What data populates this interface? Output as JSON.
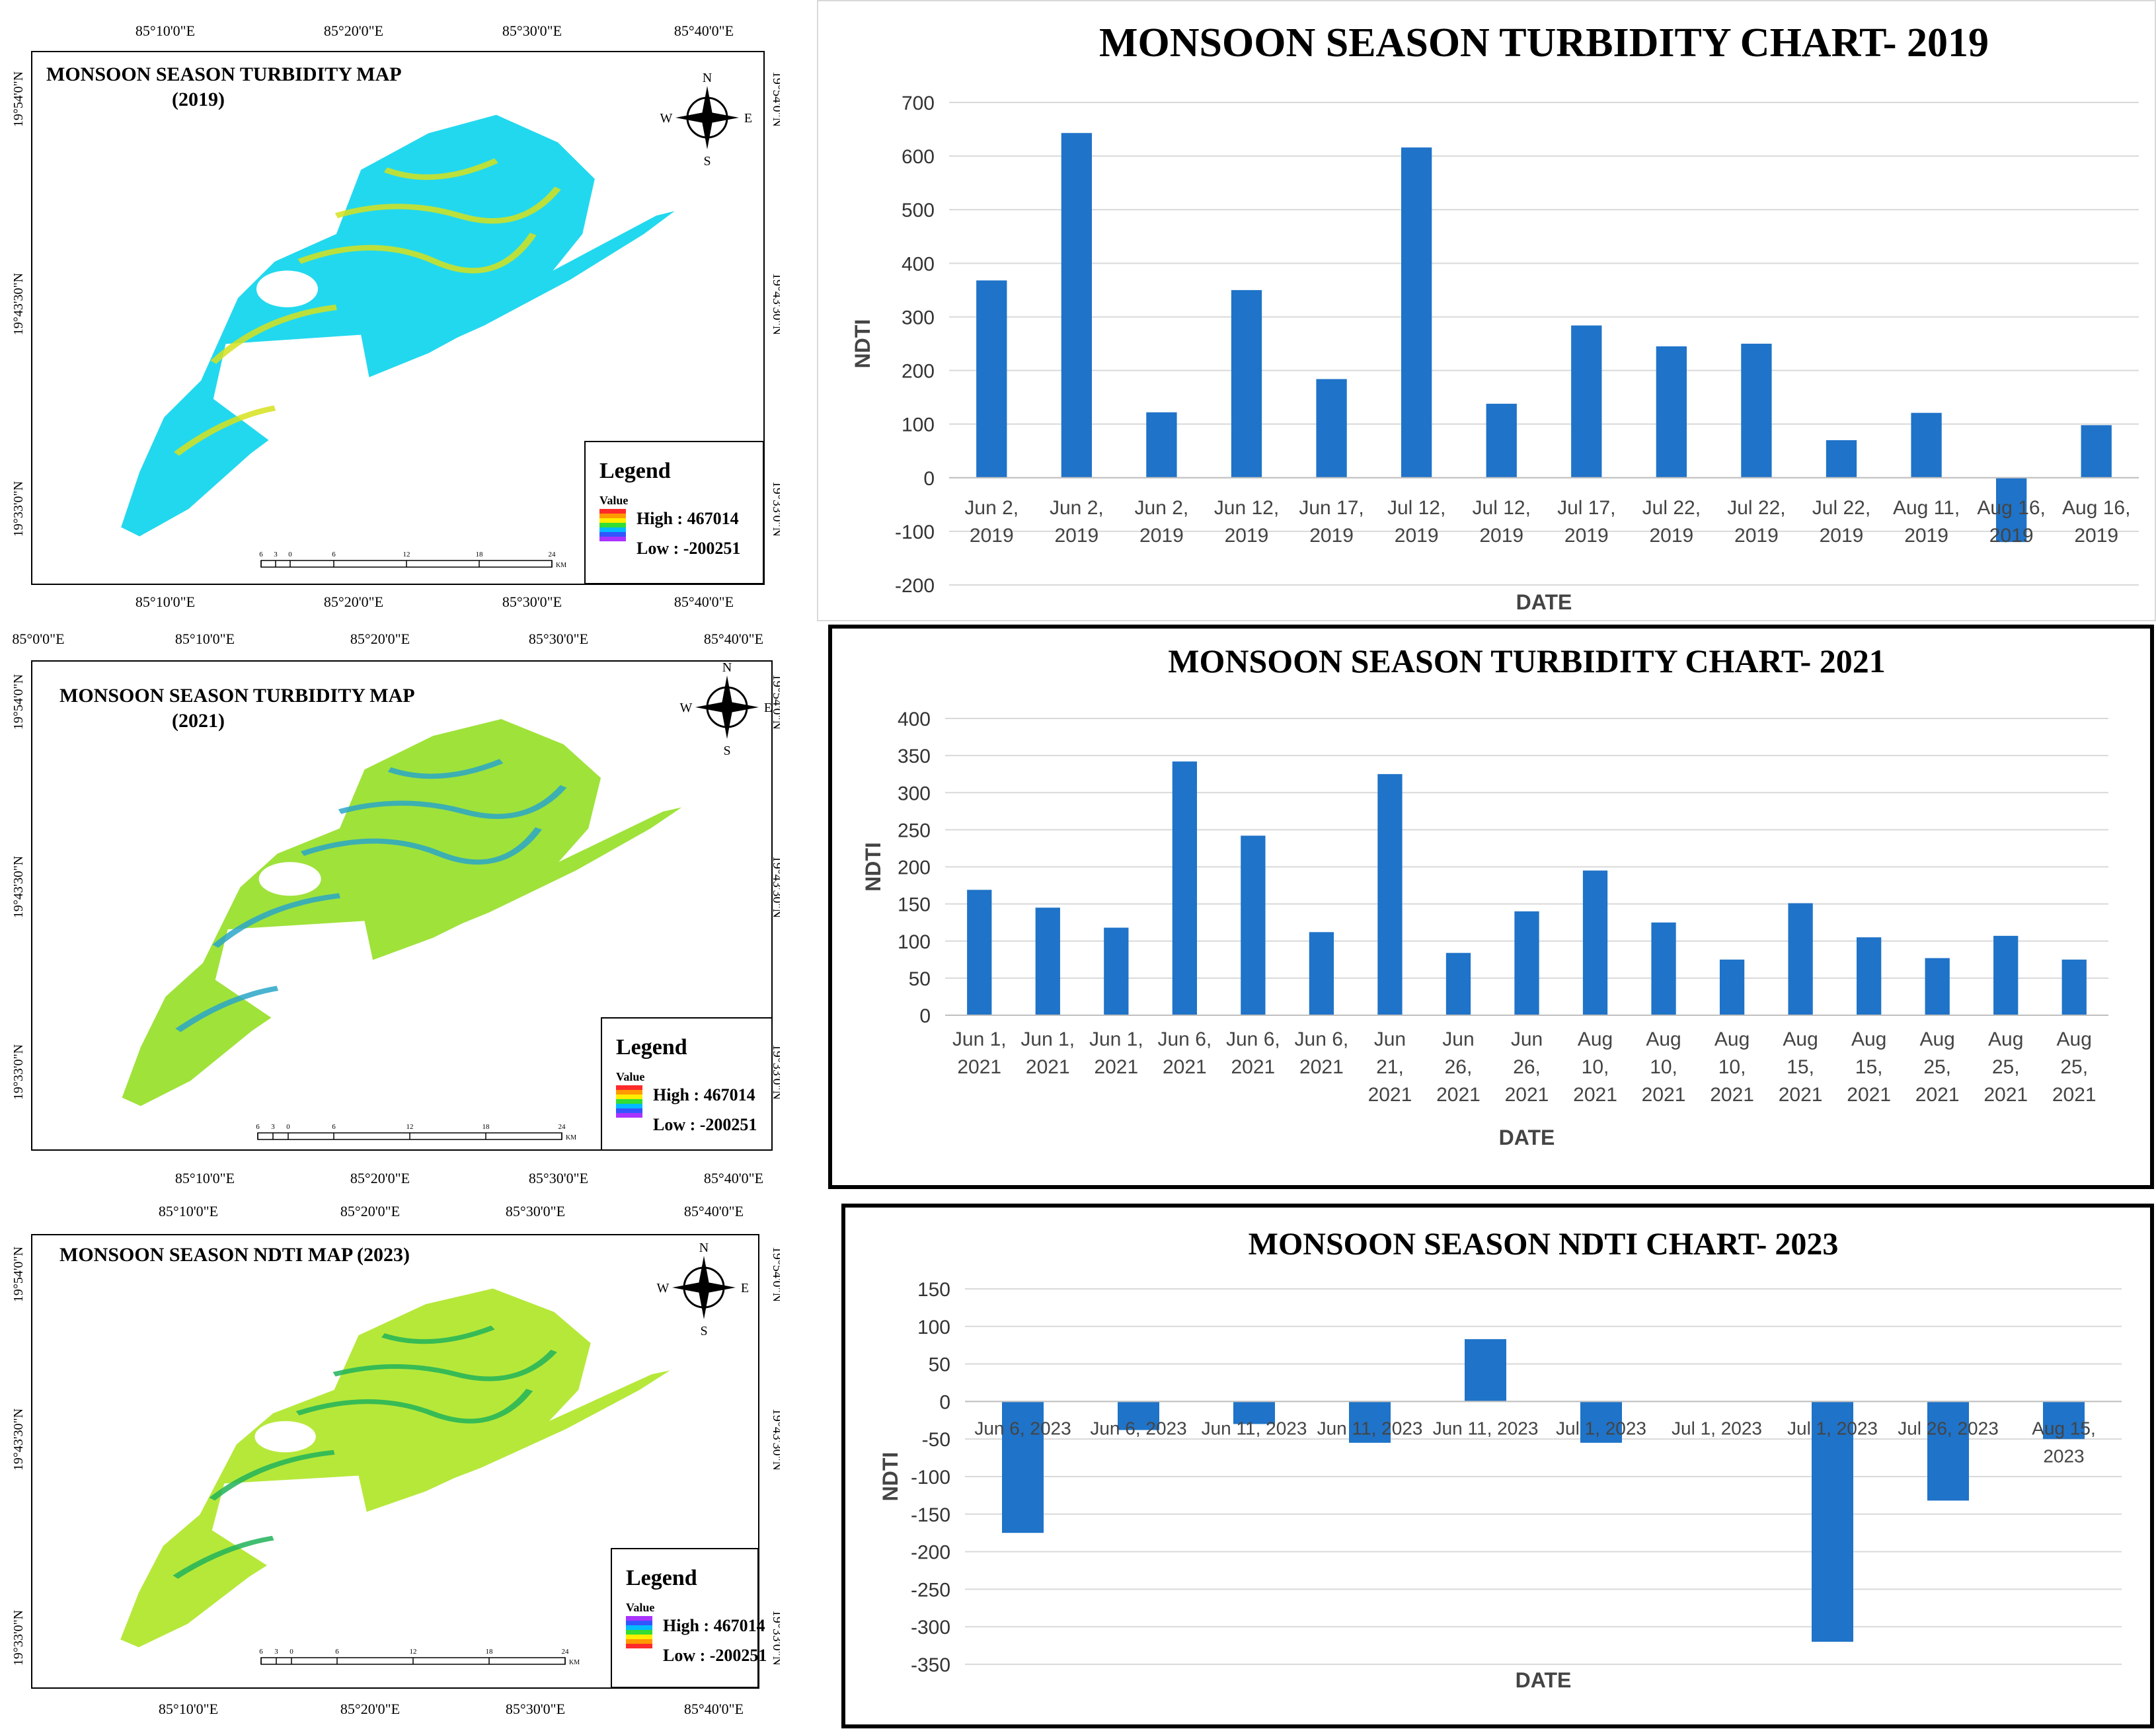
{
  "maps": [
    {
      "title": "MONSOON SEASON TURBIDITY MAP",
      "subtitle": "(2019)",
      "lon_labels": [
        "85°10'0\"E",
        "85°20'0\"E",
        "85°30'0\"E",
        "85°40'0\"E"
      ],
      "lat_labels": [
        "19°54'0\"N",
        "19°43'30\"N",
        "19°33'0\"N"
      ],
      "legend_title": "Legend",
      "legend_value_label": "Value",
      "legend_high": "High : 467014",
      "legend_low": "Low : -200251",
      "scale_ticks": [
        "6",
        "3",
        "0",
        "6",
        "12",
        "18",
        "24"
      ],
      "scale_unit": "KM",
      "compass": {
        "n": "N",
        "s": "S",
        "e": "E",
        "w": "W"
      },
      "fill_color": "#22d8ee",
      "accent_color": "#d6e21c"
    },
    {
      "title": "MONSOON SEASON TURBIDITY MAP",
      "subtitle": "(2021)",
      "lon_labels": [
        "85°0'0\"E",
        "85°10'0\"E",
        "85°20'0\"E",
        "85°30'0\"E",
        "85°40'0\"E"
      ],
      "lat_labels": [
        "19°54'0\"N",
        "19°43'30\"N",
        "19°33'0\"N"
      ],
      "legend_title": "Legend",
      "legend_value_label": "Value",
      "legend_high": "High : 467014",
      "legend_low": "Low : -200251",
      "scale_ticks": [
        "6",
        "3",
        "0",
        "6",
        "12",
        "18",
        "24"
      ],
      "scale_unit": "KM",
      "compass": {
        "n": "N",
        "s": "S",
        "e": "E",
        "w": "W"
      },
      "fill_color": "#9fe23a",
      "accent_color": "#2aa6c8"
    },
    {
      "title": "MONSOON SEASON NDTI MAP (2023)",
      "subtitle": "",
      "lon_labels": [
        "85°10'0\"E",
        "85°20'0\"E",
        "85°30'0\"E",
        "85°40'0\"E"
      ],
      "lat_labels": [
        "19°54'0\"N",
        "19°43'30\"N",
        "19°33'0\"N"
      ],
      "legend_title": "Legend",
      "legend_value_label": "Value",
      "legend_high": "High : 467014",
      "legend_low": "Low : -200251",
      "scale_ticks": [
        "6",
        "3",
        "0",
        "6",
        "12",
        "18",
        "24"
      ],
      "scale_unit": "KM",
      "compass": {
        "n": "N",
        "s": "S",
        "e": "E",
        "w": "W"
      },
      "fill_color": "#b6e83a",
      "accent_color": "#21b35b"
    }
  ],
  "chart_data": [
    {
      "type": "bar",
      "title": "MONSOON SEASON TURBIDITY CHART-  2019",
      "xlabel": "DATE",
      "ylabel": "NDTI",
      "ylim": [
        -200,
        700
      ],
      "ytick_step": 100,
      "grid": true,
      "bar_color": "#1f73c8",
      "categories": [
        [
          "Jun 2,",
          "2019"
        ],
        [
          "Jun 2,",
          "2019"
        ],
        [
          "Jun 2,",
          "2019"
        ],
        [
          "Jun 12,",
          "2019"
        ],
        [
          "Jun 17,",
          "2019"
        ],
        [
          "Jul 12,",
          "2019"
        ],
        [
          "Jul 12,",
          "2019"
        ],
        [
          "Jul 17,",
          "2019"
        ],
        [
          "Jul 22,",
          "2019"
        ],
        [
          "Jul 22,",
          "2019"
        ],
        [
          "Jul 22,",
          "2019"
        ],
        [
          "Aug 11,",
          "2019"
        ],
        [
          "Aug 16,",
          "2019"
        ],
        [
          "Aug 16,",
          "2019"
        ]
      ],
      "values": [
        368,
        643,
        122,
        350,
        184,
        616,
        138,
        284,
        245,
        250,
        70,
        121,
        -120,
        98
      ]
    },
    {
      "type": "bar",
      "title": "MONSOON SEASON TURBIDITY CHART- 2021",
      "xlabel": "DATE",
      "ylabel": "NDTI",
      "ylim": [
        0,
        400
      ],
      "ytick_step": 50,
      "grid": true,
      "bar_color": "#1f73c8",
      "categories": [
        [
          "Jun 1,",
          "2021"
        ],
        [
          "Jun 1,",
          "2021"
        ],
        [
          "Jun 1,",
          "2021"
        ],
        [
          "Jun 6,",
          "2021"
        ],
        [
          "Jun 6,",
          "2021"
        ],
        [
          "Jun 6,",
          "2021"
        ],
        [
          "Jun",
          "21,",
          "2021"
        ],
        [
          "Jun",
          "26,",
          "2021"
        ],
        [
          "Jun",
          "26,",
          "2021"
        ],
        [
          "Aug",
          "10,",
          "2021"
        ],
        [
          "Aug",
          "10,",
          "2021"
        ],
        [
          "Aug",
          "10,",
          "2021"
        ],
        [
          "Aug",
          "15,",
          "2021"
        ],
        [
          "Aug",
          "15,",
          "2021"
        ],
        [
          "Aug",
          "25,",
          "2021"
        ],
        [
          "Aug",
          "25,",
          "2021"
        ],
        [
          "Aug",
          "25,",
          "2021"
        ]
      ],
      "values": [
        169,
        145,
        118,
        342,
        242,
        112,
        325,
        84,
        140,
        195,
        125,
        75,
        151,
        105,
        77,
        107,
        75
      ]
    },
    {
      "type": "bar",
      "title": "MONSOON SEASON NDTI CHART- 2023",
      "xlabel": "DATE",
      "ylabel": "NDTI",
      "ylim": [
        -350,
        150
      ],
      "ytick_step": 50,
      "grid": true,
      "bar_color": "#1f73c8",
      "categories": [
        [
          "Jun 6, 2023"
        ],
        [
          "Jun 6, 2023"
        ],
        [
          "Jun 11, 2023"
        ],
        [
          "Jun 11, 2023"
        ],
        [
          "Jun 11, 2023"
        ],
        [
          "Jul 1, 2023"
        ],
        [
          "Jul 1, 2023"
        ],
        [
          "Jul 1, 2023"
        ],
        [
          "Jul 26, 2023"
        ],
        [
          "Aug 15,",
          "2023"
        ]
      ],
      "values": [
        -175,
        -38,
        -30,
        -55,
        83,
        -55,
        0,
        -320,
        -132,
        -50
      ]
    }
  ]
}
